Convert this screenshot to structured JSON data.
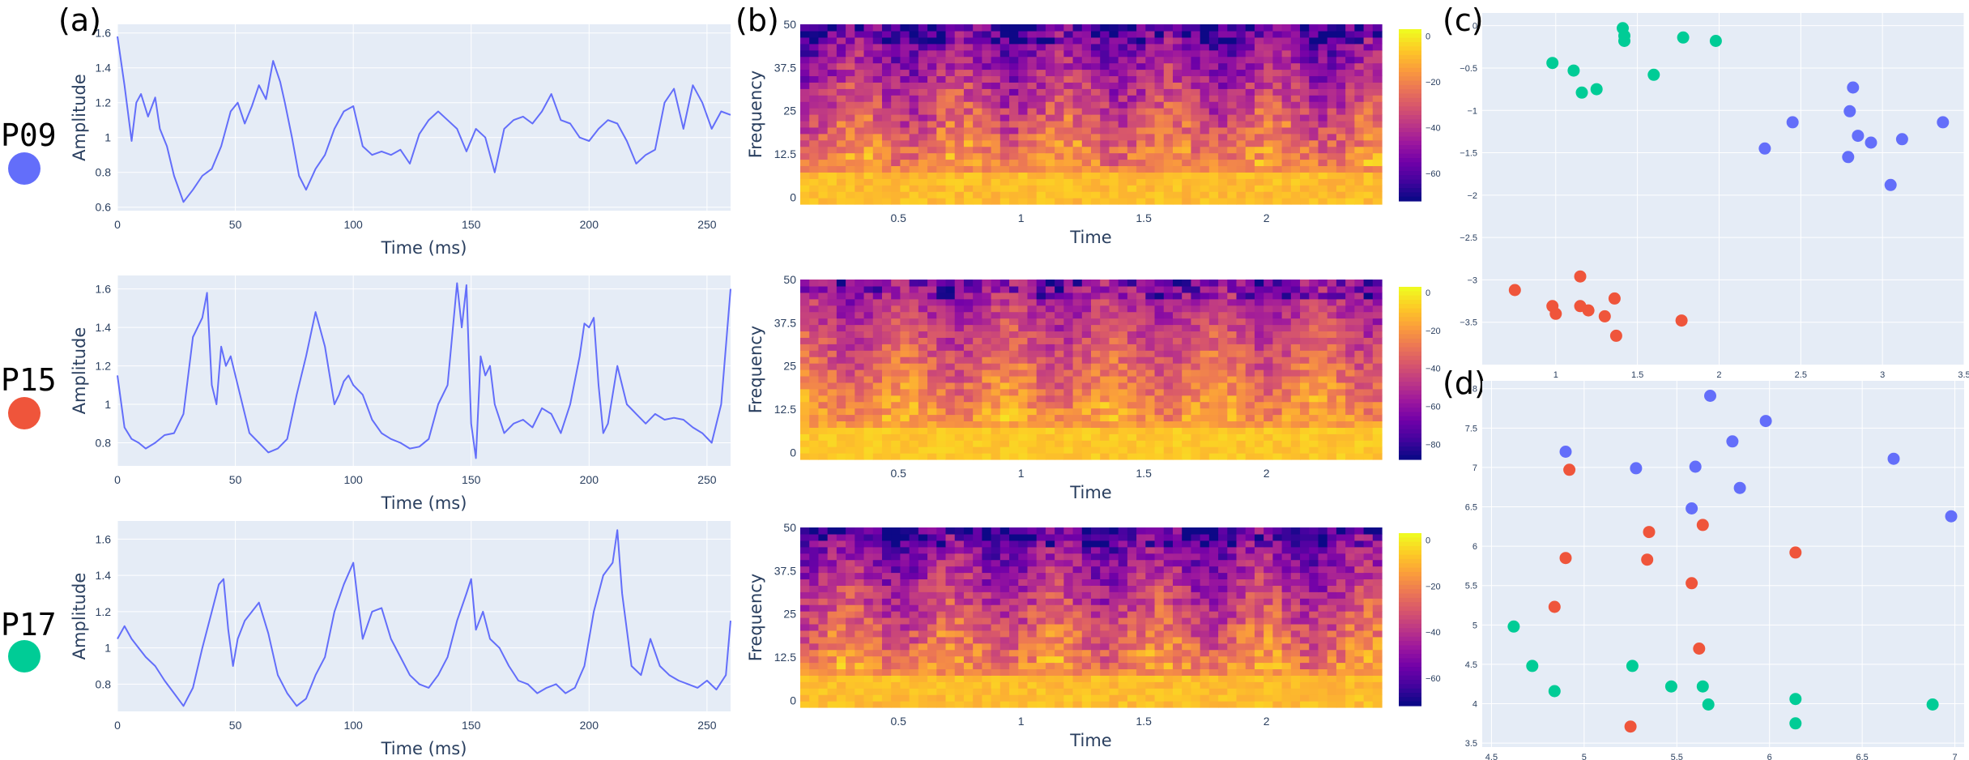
{
  "colors": {
    "plot_bg": "#e5ecf6",
    "grid": "#ffffff",
    "line": "#636efa",
    "tick_text": "#2a3f5f",
    "colorscale": [
      "#0d0887",
      "#46039f",
      "#7201a8",
      "#9c179e",
      "#bd3786",
      "#d8576b",
      "#ed7953",
      "#fb9f3a",
      "#fdca26",
      "#f0f921"
    ]
  },
  "panel_labels": [
    "(a)",
    "(b)",
    "(c)",
    "(d)"
  ],
  "participants": [
    {
      "name": "P09",
      "color": "#636efa"
    },
    {
      "name": "P15",
      "color": "#ef553b"
    },
    {
      "name": "P17",
      "color": "#00cc96"
    }
  ],
  "chart_data": [
    {
      "id": "signal-p09",
      "type": "line",
      "participant": "P09",
      "xlabel": "Time (ms)",
      "ylabel": "Amplitude",
      "xlim": [
        0,
        260
      ],
      "ylim": [
        0.58,
        1.65
      ],
      "xticks": [
        0,
        50,
        100,
        150,
        200,
        250
      ],
      "xtick_labels": [
        "0",
        "50",
        "100",
        "150",
        "200",
        "250"
      ],
      "yticks": [
        0.6,
        0.8,
        1.0,
        1.2,
        1.4,
        1.6
      ],
      "ytick_labels": [
        "0.6",
        "0.8",
        "1",
        "1.2",
        "1.4",
        "1.6"
      ],
      "x": [
        0,
        3,
        6,
        8,
        10,
        13,
        16,
        18,
        21,
        24,
        28,
        32,
        36,
        40,
        44,
        48,
        51,
        54,
        57,
        60,
        63,
        66,
        69,
        71,
        74,
        77,
        80,
        84,
        88,
        92,
        96,
        100,
        104,
        108,
        112,
        116,
        120,
        124,
        128,
        132,
        136,
        140,
        144,
        148,
        152,
        156,
        160,
        164,
        168,
        172,
        176,
        180,
        184,
        188,
        192,
        196,
        200,
        204,
        208,
        212,
        216,
        220,
        224,
        228,
        232,
        236,
        240,
        244,
        248,
        252,
        256,
        260
      ],
      "y": [
        1.58,
        1.3,
        0.98,
        1.2,
        1.25,
        1.12,
        1.23,
        1.05,
        0.95,
        0.78,
        0.63,
        0.7,
        0.78,
        0.82,
        0.95,
        1.15,
        1.2,
        1.08,
        1.18,
        1.3,
        1.22,
        1.44,
        1.32,
        1.2,
        1.0,
        0.78,
        0.7,
        0.82,
        0.9,
        1.05,
        1.15,
        1.18,
        0.95,
        0.9,
        0.92,
        0.9,
        0.93,
        0.85,
        1.02,
        1.1,
        1.15,
        1.1,
        1.05,
        0.92,
        1.05,
        1.0,
        0.8,
        1.05,
        1.1,
        1.12,
        1.08,
        1.15,
        1.25,
        1.1,
        1.08,
        1.0,
        0.98,
        1.05,
        1.1,
        1.08,
        0.98,
        0.85,
        0.9,
        0.93,
        1.2,
        1.28,
        1.05,
        1.3,
        1.2,
        1.05,
        1.15,
        1.13
      ]
    },
    {
      "id": "signal-p15",
      "type": "line",
      "participant": "P15",
      "xlabel": "Time (ms)",
      "ylabel": "Amplitude",
      "xlim": [
        0,
        260
      ],
      "ylim": [
        0.68,
        1.67
      ],
      "xticks": [
        0,
        50,
        100,
        150,
        200,
        250
      ],
      "xtick_labels": [
        "0",
        "50",
        "100",
        "150",
        "200",
        "250"
      ],
      "yticks": [
        0.8,
        1.0,
        1.2,
        1.4,
        1.6
      ],
      "ytick_labels": [
        "0.8",
        "1",
        "1.2",
        "1.4",
        "1.6"
      ],
      "x": [
        0,
        3,
        6,
        9,
        12,
        16,
        20,
        24,
        28,
        32,
        36,
        38,
        40,
        42,
        44,
        46,
        48,
        52,
        56,
        60,
        64,
        68,
        72,
        76,
        80,
        84,
        88,
        90,
        92,
        94,
        96,
        98,
        100,
        104,
        108,
        112,
        116,
        120,
        124,
        128,
        132,
        136,
        140,
        144,
        146,
        148,
        150,
        152,
        154,
        156,
        158,
        160,
        164,
        168,
        172,
        176,
        180,
        184,
        188,
        192,
        196,
        198,
        200,
        202,
        204,
        206,
        208,
        212,
        216,
        220,
        224,
        228,
        232,
        236,
        240,
        244,
        248,
        252,
        256,
        260
      ],
      "y": [
        1.15,
        0.88,
        0.82,
        0.8,
        0.77,
        0.8,
        0.84,
        0.85,
        0.95,
        1.35,
        1.45,
        1.58,
        1.1,
        1.0,
        1.3,
        1.2,
        1.25,
        1.05,
        0.85,
        0.8,
        0.75,
        0.77,
        0.82,
        1.05,
        1.25,
        1.48,
        1.3,
        1.15,
        1.0,
        1.05,
        1.12,
        1.15,
        1.1,
        1.05,
        0.92,
        0.85,
        0.82,
        0.8,
        0.77,
        0.78,
        0.82,
        1.0,
        1.1,
        1.63,
        1.4,
        1.62,
        0.9,
        0.72,
        1.25,
        1.15,
        1.2,
        1.0,
        0.85,
        0.9,
        0.92,
        0.88,
        0.98,
        0.95,
        0.85,
        1.0,
        1.25,
        1.42,
        1.4,
        1.45,
        1.1,
        0.85,
        0.9,
        1.2,
        1.0,
        0.95,
        0.9,
        0.95,
        0.92,
        0.93,
        0.92,
        0.88,
        0.85,
        0.8,
        1.0,
        1.6
      ]
    },
    {
      "id": "signal-p17",
      "type": "line",
      "participant": "P17",
      "xlabel": "Time (ms)",
      "ylabel": "Amplitude",
      "xlim": [
        0,
        260
      ],
      "ylim": [
        0.65,
        1.7
      ],
      "xticks": [
        0,
        50,
        100,
        150,
        200,
        250
      ],
      "xtick_labels": [
        "0",
        "50",
        "100",
        "150",
        "200",
        "250"
      ],
      "yticks": [
        0.8,
        1.0,
        1.2,
        1.4,
        1.6
      ],
      "ytick_labels": [
        "0.8",
        "1",
        "1.2",
        "1.4",
        "1.6"
      ],
      "x": [
        0,
        3,
        6,
        9,
        12,
        16,
        20,
        24,
        28,
        32,
        36,
        40,
        43,
        45,
        47,
        49,
        51,
        54,
        57,
        60,
        64,
        68,
        72,
        76,
        80,
        84,
        88,
        92,
        96,
        100,
        102,
        104,
        108,
        112,
        116,
        120,
        124,
        128,
        132,
        136,
        140,
        144,
        148,
        150,
        152,
        155,
        158,
        162,
        166,
        170,
        174,
        178,
        182,
        186,
        190,
        194,
        198,
        202,
        206,
        210,
        212,
        214,
        218,
        222,
        226,
        230,
        234,
        238,
        242,
        246,
        250,
        254,
        258,
        260
      ],
      "y": [
        1.05,
        1.12,
        1.05,
        1.0,
        0.95,
        0.9,
        0.82,
        0.75,
        0.68,
        0.78,
        1.0,
        1.2,
        1.35,
        1.38,
        1.1,
        0.9,
        1.05,
        1.15,
        1.2,
        1.25,
        1.08,
        0.85,
        0.75,
        0.68,
        0.72,
        0.85,
        0.95,
        1.2,
        1.35,
        1.47,
        1.25,
        1.05,
        1.2,
        1.22,
        1.05,
        0.95,
        0.85,
        0.8,
        0.78,
        0.85,
        0.95,
        1.15,
        1.3,
        1.38,
        1.1,
        1.2,
        1.05,
        1.0,
        0.9,
        0.82,
        0.8,
        0.75,
        0.78,
        0.8,
        0.75,
        0.78,
        0.9,
        1.2,
        1.4,
        1.47,
        1.65,
        1.3,
        0.9,
        0.85,
        1.05,
        0.9,
        0.85,
        0.82,
        0.8,
        0.78,
        0.82,
        0.77,
        0.85,
        1.15
      ]
    },
    {
      "id": "spec-p09",
      "type": "heatmap",
      "participant": "P09",
      "xlabel": "Time",
      "ylabel": "Frequency",
      "xlim": [
        0.1,
        2.47
      ],
      "ylim": [
        -2,
        50
      ],
      "xticks": [
        0.5,
        1,
        1.5,
        2
      ],
      "xtick_labels": [
        "0.5",
        "1",
        "1.5",
        "2"
      ],
      "yticks": [
        0,
        12.5,
        25,
        37.5,
        50
      ],
      "ytick_labels": [
        "0",
        "12.5",
        "25",
        "37.5",
        "50"
      ],
      "zlim": [
        -72,
        3
      ],
      "colorbar_ticks": [
        0,
        -20,
        -40,
        -60
      ],
      "colorbar_labels": [
        "0",
        "−20",
        "−40",
        "−60"
      ],
      "n_time": 64,
      "n_freq": 28,
      "seed": 11,
      "bands": [
        {
          "f": 0,
          "width": 0,
          "val": -2
        },
        {
          "f": 3,
          "width": 0,
          "val": -3
        },
        {
          "f": 6,
          "width": 0,
          "val": -6
        },
        {
          "f": 9,
          "width": 0,
          "val": -14
        }
      ]
    },
    {
      "id": "spec-p15",
      "type": "heatmap",
      "participant": "P15",
      "xlabel": "Time",
      "ylabel": "Frequency",
      "xlim": [
        0.1,
        2.47
      ],
      "ylim": [
        -2,
        50
      ],
      "xticks": [
        0.5,
        1,
        1.5,
        2
      ],
      "xtick_labels": [
        "0.5",
        "1",
        "1.5",
        "2"
      ],
      "yticks": [
        0,
        12.5,
        25,
        37.5,
        50
      ],
      "ytick_labels": [
        "0",
        "12.5",
        "25",
        "37.5",
        "50"
      ],
      "zlim": [
        -88,
        3
      ],
      "colorbar_ticks": [
        0,
        -20,
        -40,
        -60,
        -80
      ],
      "colorbar_labels": [
        "0",
        "−20",
        "−40",
        "−60",
        "−80"
      ],
      "n_time": 64,
      "n_freq": 28,
      "seed": 27,
      "bands": [
        {
          "f": 0,
          "width": 0,
          "val": -4
        },
        {
          "f": 3,
          "width": 0,
          "val": -5
        },
        {
          "f": 6,
          "width": 0,
          "val": -10
        }
      ]
    },
    {
      "id": "spec-p17",
      "type": "heatmap",
      "participant": "P17",
      "xlabel": "Time",
      "ylabel": "Frequency",
      "xlim": [
        0.1,
        2.47
      ],
      "ylim": [
        -2,
        50
      ],
      "xticks": [
        0.5,
        1,
        1.5,
        2
      ],
      "xtick_labels": [
        "0.5",
        "1",
        "1.5",
        "2"
      ],
      "yticks": [
        0,
        12.5,
        25,
        37.5,
        50
      ],
      "ytick_labels": [
        "0",
        "12.5",
        "25",
        "37.5",
        "50"
      ],
      "zlim": [
        -72,
        3
      ],
      "colorbar_ticks": [
        0,
        -20,
        -40,
        -60
      ],
      "colorbar_labels": [
        "0",
        "−20",
        "−40",
        "−60"
      ],
      "n_time": 64,
      "n_freq": 28,
      "seed": 43,
      "bands": [
        {
          "f": 0,
          "width": 0,
          "val": -2
        },
        {
          "f": 3,
          "width": 0,
          "val": -4
        },
        {
          "f": 6,
          "width": 0,
          "val": -8
        }
      ]
    },
    {
      "id": "scatter-c",
      "type": "scatter",
      "xlim": [
        0.55,
        3.5
      ],
      "ylim": [
        -4.0,
        0.15
      ],
      "xticks": [
        1,
        1.5,
        2,
        2.5,
        3,
        3.5
      ],
      "xtick_labels": [
        "1",
        "1.5",
        "2",
        "2.5",
        "3",
        "3.5"
      ],
      "yticks": [
        0,
        -0.5,
        -1,
        -1.5,
        -2,
        -2.5,
        -3,
        -3.5
      ],
      "ytick_labels": [
        "0",
        "−0.5",
        "−1",
        "−1.5",
        "−2",
        "−2.5",
        "−3",
        "−3.5"
      ],
      "series": [
        {
          "name": "P09",
          "color": "#636efa",
          "x": [
            2.82,
            2.45,
            2.8,
            2.28,
            2.85,
            2.93,
            2.79,
            3.12,
            3.37,
            3.05
          ],
          "y": [
            -0.73,
            -1.14,
            -1.01,
            -1.45,
            -1.3,
            -1.38,
            -1.55,
            -1.34,
            -1.14,
            -1.88
          ]
        },
        {
          "name": "P15",
          "color": "#ef553b",
          "x": [
            0.75,
            0.98,
            1.15,
            1.0,
            1.2,
            1.3,
            1.36,
            1.15,
            1.37,
            1.77
          ],
          "y": [
            -3.12,
            -3.31,
            -2.96,
            -3.4,
            -3.36,
            -3.43,
            -3.22,
            -3.31,
            -3.66,
            -3.48
          ]
        },
        {
          "name": "P17",
          "color": "#00cc96",
          "x": [
            1.41,
            1.42,
            1.42,
            1.78,
            1.98,
            0.98,
            1.11,
            1.16,
            1.25,
            1.6
          ],
          "y": [
            -0.03,
            -0.12,
            -0.18,
            -0.14,
            -0.18,
            -0.44,
            -0.53,
            -0.79,
            -0.75,
            -0.58
          ]
        }
      ]
    },
    {
      "id": "scatter-d",
      "type": "scatter",
      "xlim": [
        4.45,
        7.05
      ],
      "ylim": [
        3.45,
        8.1
      ],
      "xticks": [
        4.5,
        5,
        5.5,
        6,
        6.5,
        7
      ],
      "xtick_labels": [
        "4.5",
        "5",
        "5.5",
        "6",
        "6.5",
        "7"
      ],
      "yticks": [
        3.5,
        4,
        4.5,
        5,
        5.5,
        6,
        6.5,
        7,
        7.5,
        8
      ],
      "ytick_labels": [
        "3.5",
        "4",
        "4.5",
        "5",
        "5.5",
        "6",
        "6.5",
        "7",
        "7.5",
        "8"
      ],
      "series": [
        {
          "name": "P09",
          "color": "#636efa",
          "x": [
            5.68,
            5.98,
            5.8,
            4.9,
            5.28,
            5.6,
            5.84,
            5.58,
            6.67,
            6.98
          ],
          "y": [
            7.91,
            7.59,
            7.33,
            7.2,
            6.99,
            7.01,
            6.74,
            6.48,
            7.11,
            6.38
          ]
        },
        {
          "name": "P15",
          "color": "#ef553b",
          "x": [
            4.92,
            5.35,
            5.64,
            5.34,
            4.9,
            6.14,
            5.58,
            4.84,
            5.62,
            5.25
          ],
          "y": [
            6.97,
            6.18,
            6.27,
            5.83,
            5.85,
            5.92,
            5.53,
            5.23,
            4.7,
            3.71
          ]
        },
        {
          "name": "P17",
          "color": "#00cc96",
          "x": [
            4.62,
            4.72,
            4.84,
            5.26,
            5.47,
            5.64,
            5.67,
            6.14,
            6.14,
            6.88
          ],
          "y": [
            4.98,
            4.48,
            4.16,
            4.48,
            4.22,
            4.22,
            3.99,
            4.06,
            3.75,
            3.99
          ]
        }
      ]
    }
  ]
}
